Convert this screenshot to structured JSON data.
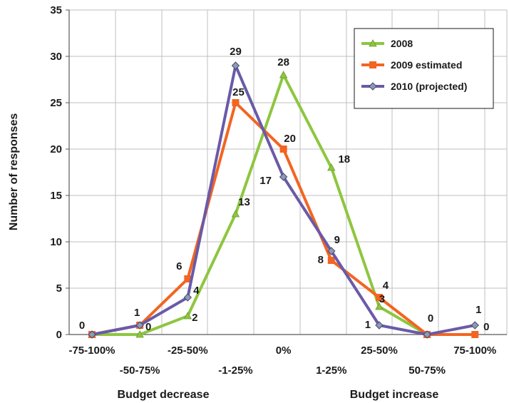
{
  "chart_data": {
    "type": "line",
    "categories": [
      "-75-100%",
      "-50-75%",
      "-25-50%",
      "-1-25%",
      "0%",
      "1-25%",
      "25-50%",
      "50-75%",
      "75-100%"
    ],
    "ylabel": "Number of responses",
    "group_labels": [
      "Budget decrease",
      "Budget increase"
    ],
    "ylim": [
      0,
      35
    ],
    "yticks": [
      0,
      5,
      10,
      15,
      20,
      25,
      30,
      35
    ],
    "grid": true,
    "legend_position": "top-right",
    "series": [
      {
        "name": "2008",
        "color": "#8dc63f",
        "marker": "triangle",
        "values": [
          0,
          0,
          2,
          13,
          28,
          18,
          3,
          0,
          null
        ]
      },
      {
        "name": "2009 estimated",
        "color": "#f26522",
        "marker": "square",
        "values": [
          0,
          1,
          6,
          25,
          20,
          8,
          4,
          0,
          0
        ]
      },
      {
        "name": "2010 (projected)",
        "color": "#6a5aa8",
        "marker": "diamond",
        "values": [
          0,
          1,
          4,
          29,
          17,
          9,
          1,
          0,
          1
        ]
      }
    ],
    "data_labels": [
      {
        "text": "0",
        "category": "-75-100%"
      },
      {
        "text": "1",
        "category": "-50-75%"
      },
      {
        "text": "0",
        "category": "-50-75%"
      },
      {
        "text": "6",
        "category": "-25-50%"
      },
      {
        "text": "4",
        "category": "-25-50%"
      },
      {
        "text": "2",
        "category": "-25-50%"
      },
      {
        "text": "29",
        "category": "-1-25%"
      },
      {
        "text": "25",
        "category": "-1-25%"
      },
      {
        "text": "13",
        "category": "-1-25%"
      },
      {
        "text": "28",
        "category": "0%"
      },
      {
        "text": "20",
        "category": "0%"
      },
      {
        "text": "17",
        "category": "0%"
      },
      {
        "text": "18",
        "category": "1-25%"
      },
      {
        "text": "9",
        "category": "1-25%"
      },
      {
        "text": "8",
        "category": "1-25%"
      },
      {
        "text": "4",
        "category": "25-50%"
      },
      {
        "text": "3",
        "category": "25-50%"
      },
      {
        "text": "1",
        "category": "25-50%"
      },
      {
        "text": "0",
        "category": "50-75%"
      },
      {
        "text": "1",
        "category": "75-100%"
      },
      {
        "text": "0",
        "category": "75-100%"
      }
    ]
  }
}
